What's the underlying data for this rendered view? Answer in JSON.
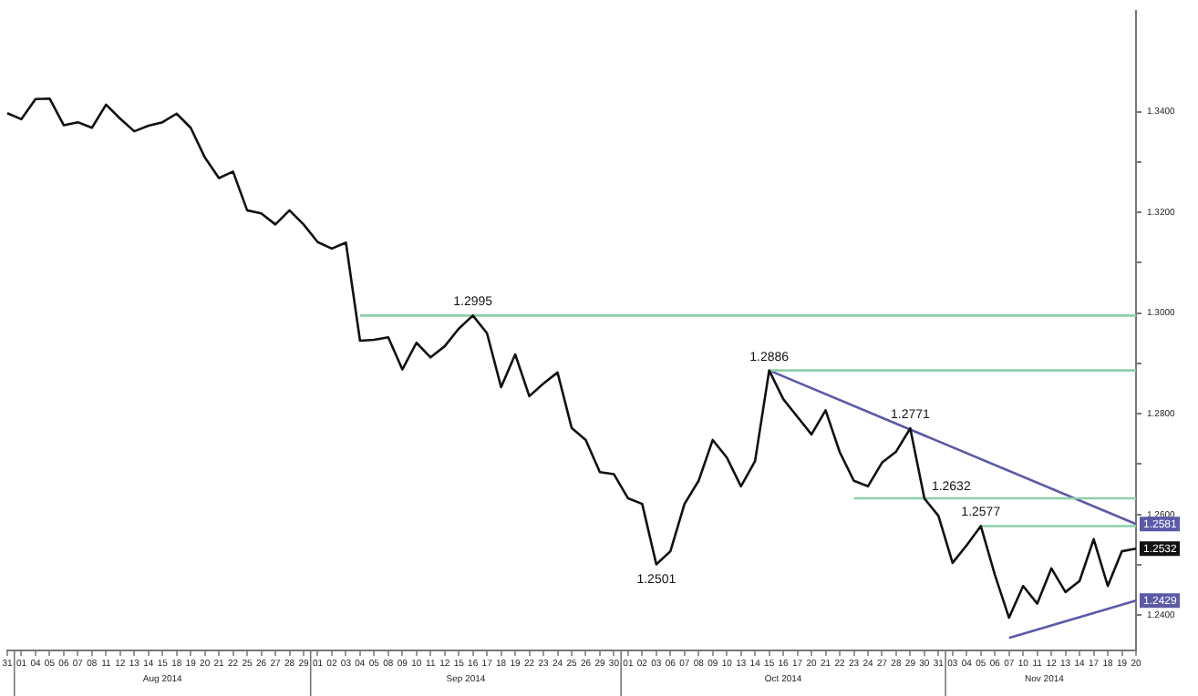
{
  "chart_data": {
    "type": "line",
    "categories": [
      "31",
      "01",
      "04",
      "05",
      "06",
      "07",
      "08",
      "11",
      "12",
      "13",
      "14",
      "15",
      "18",
      "19",
      "20",
      "21",
      "22",
      "25",
      "26",
      "27",
      "28",
      "29",
      "01",
      "02",
      "03",
      "04",
      "05",
      "08",
      "09",
      "10",
      "11",
      "12",
      "15",
      "16",
      "17",
      "18",
      "19",
      "22",
      "23",
      "24",
      "25",
      "26",
      "29",
      "30",
      "01",
      "02",
      "03",
      "06",
      "07",
      "08",
      "09",
      "10",
      "13",
      "14",
      "15",
      "16",
      "17",
      "20",
      "21",
      "22",
      "23",
      "24",
      "27",
      "28",
      "29",
      "30",
      "31",
      "03",
      "04",
      "05",
      "06",
      "07",
      "10",
      "11",
      "12",
      "13",
      "14",
      "17",
      "18",
      "19",
      "20"
    ],
    "series": [
      {
        "color": "#111111",
        "values": [
          1.3397,
          1.3385,
          1.3425,
          1.3426,
          1.3373,
          1.3379,
          1.3368,
          1.3414,
          1.3386,
          1.3361,
          1.3372,
          1.3379,
          1.3396,
          1.3368,
          1.3309,
          1.3268,
          1.3281,
          1.3204,
          1.3198,
          1.3176,
          1.3204,
          1.3176,
          1.3141,
          1.3128,
          1.314,
          1.2945,
          1.2947,
          1.2952,
          1.2888,
          1.2941,
          1.2912,
          1.2934,
          1.2969,
          1.2995,
          1.296,
          1.2853,
          1.2918,
          1.2835,
          1.286,
          1.2882,
          1.2772,
          1.2748,
          1.2684,
          1.268,
          1.2632,
          1.2621,
          1.2501,
          1.2527,
          1.2621,
          1.2667,
          1.2748,
          1.2713,
          1.2656,
          1.2706,
          1.2886,
          1.2829,
          1.2794,
          1.2759,
          1.2807,
          1.2724,
          1.2667,
          1.2656,
          1.2703,
          1.2725,
          1.2771,
          1.2632,
          1.2597,
          1.2504,
          1.2539,
          1.2577,
          1.248,
          1.2395,
          1.2458,
          1.2423,
          1.2493,
          1.2446,
          1.2468,
          1.2551,
          1.2458,
          1.2527,
          1.2532
        ],
        "value_labels": [
          null,
          null,
          null,
          null,
          null,
          null,
          null,
          null,
          null,
          null,
          null,
          null,
          null,
          null,
          null,
          null,
          null,
          null,
          null,
          null,
          null,
          null,
          null,
          null,
          null,
          null,
          null,
          null,
          null,
          null,
          null,
          null,
          null,
          "1.2995",
          null,
          null,
          null,
          null,
          null,
          null,
          null,
          null,
          null,
          null,
          null,
          null,
          "1.2501",
          null,
          null,
          null,
          null,
          null,
          null,
          null,
          "1.2886",
          null,
          null,
          null,
          null,
          null,
          null,
          null,
          null,
          null,
          "1.2771",
          "1.2632",
          null,
          null,
          null,
          "1.2577",
          null,
          null,
          null,
          null,
          null,
          null,
          null,
          null,
          null,
          null,
          null
        ]
      },
      {
        "color": "#8ccfa8",
        "values": [
          null,
          null,
          null,
          null,
          null,
          null,
          null,
          null,
          null,
          null,
          null,
          null,
          null,
          null,
          null,
          null,
          null,
          null,
          null,
          null,
          null,
          null,
          null,
          null,
          null,
          1.2995,
          1.2995,
          1.2995,
          1.2995,
          1.2995,
          1.2995,
          1.2995,
          1.2995,
          1.2995,
          1.2995,
          1.2995,
          1.2995,
          1.2995,
          1.2995,
          1.2995,
          1.2995,
          1.2995,
          1.2995,
          1.2995,
          1.2995,
          1.2995,
          1.2995,
          1.2995,
          1.2995,
          1.2995,
          1.2995,
          1.2995,
          1.2995,
          1.2995,
          1.2995,
          1.2995,
          1.2995,
          1.2995,
          1.2995,
          1.2995,
          1.2995,
          1.2995,
          1.2995,
          1.2995,
          1.2995,
          1.2995,
          1.2995,
          1.2995,
          1.2995,
          1.2995,
          1.2995,
          1.2995,
          1.2995,
          1.2995,
          1.2995,
          1.2995,
          1.2995,
          1.2995,
          1.2995,
          1.2995,
          1.2995
        ]
      },
      {
        "color": "#8ccfa8",
        "values": [
          null,
          null,
          null,
          null,
          null,
          null,
          null,
          null,
          null,
          null,
          null,
          null,
          null,
          null,
          null,
          null,
          null,
          null,
          null,
          null,
          null,
          null,
          null,
          null,
          null,
          null,
          null,
          null,
          null,
          null,
          null,
          null,
          null,
          null,
          null,
          null,
          null,
          null,
          null,
          null,
          null,
          null,
          null,
          null,
          null,
          null,
          null,
          null,
          null,
          null,
          null,
          null,
          null,
          null,
          1.2886,
          1.2886,
          1.2886,
          1.2886,
          1.2886,
          1.2886,
          1.2886,
          1.2886,
          1.2886,
          1.2886,
          1.2886,
          1.2886,
          1.2886,
          1.2886,
          1.2886,
          1.2886,
          1.2886,
          1.2886,
          1.2886,
          1.2886,
          1.2886,
          1.2886,
          1.2886,
          1.2886,
          1.2886,
          1.2886,
          1.2886
        ]
      },
      {
        "color": "#8ccfa8",
        "values": [
          null,
          null,
          null,
          null,
          null,
          null,
          null,
          null,
          null,
          null,
          null,
          null,
          null,
          null,
          null,
          null,
          null,
          null,
          null,
          null,
          null,
          null,
          null,
          null,
          null,
          null,
          null,
          null,
          null,
          null,
          null,
          null,
          null,
          null,
          null,
          null,
          null,
          null,
          null,
          null,
          null,
          null,
          null,
          null,
          null,
          null,
          null,
          null,
          null,
          null,
          null,
          null,
          null,
          null,
          null,
          null,
          null,
          null,
          null,
          null,
          1.2632,
          1.2632,
          1.2632,
          1.2632,
          1.2632,
          1.2632,
          1.2632,
          1.2632,
          1.2632,
          1.2632,
          1.2632,
          1.2632,
          1.2632,
          1.2632,
          1.2632,
          1.2632,
          1.2632,
          1.2632,
          1.2632,
          1.2632,
          1.2632
        ]
      },
      {
        "color": "#8ccfa8",
        "values": [
          null,
          null,
          null,
          null,
          null,
          null,
          null,
          null,
          null,
          null,
          null,
          null,
          null,
          null,
          null,
          null,
          null,
          null,
          null,
          null,
          null,
          null,
          null,
          null,
          null,
          null,
          null,
          null,
          null,
          null,
          null,
          null,
          null,
          null,
          null,
          null,
          null,
          null,
          null,
          null,
          null,
          null,
          null,
          null,
          null,
          null,
          null,
          null,
          null,
          null,
          null,
          null,
          null,
          null,
          null,
          null,
          null,
          null,
          null,
          null,
          null,
          null,
          null,
          null,
          null,
          null,
          null,
          null,
          null,
          1.2577,
          1.2577,
          1.2577,
          1.2577,
          1.2577,
          1.2577,
          1.2577,
          1.2577,
          1.2577,
          1.2577,
          1.2577,
          1.2577
        ]
      },
      {
        "color": "#5a5aa8",
        "values": [
          null,
          null,
          null,
          null,
          null,
          null,
          null,
          null,
          null,
          null,
          null,
          null,
          null,
          null,
          null,
          null,
          null,
          null,
          null,
          null,
          null,
          null,
          null,
          null,
          null,
          null,
          null,
          null,
          null,
          null,
          null,
          null,
          null,
          null,
          null,
          null,
          null,
          null,
          null,
          null,
          null,
          null,
          null,
          null,
          null,
          null,
          null,
          null,
          null,
          null,
          null,
          null,
          null,
          null,
          1.2886,
          null,
          null,
          null,
          null,
          null,
          null,
          null,
          null,
          null,
          null,
          null,
          null,
          null,
          null,
          null,
          null,
          null,
          null,
          null,
          null,
          null,
          null,
          null,
          null,
          null,
          1.2581
        ]
      },
      {
        "color": "#5a5aa8",
        "values": [
          null,
          null,
          null,
          null,
          null,
          null,
          null,
          null,
          null,
          null,
          null,
          null,
          null,
          null,
          null,
          null,
          null,
          null,
          null,
          null,
          null,
          null,
          null,
          null,
          null,
          null,
          null,
          null,
          null,
          null,
          null,
          null,
          null,
          null,
          null,
          null,
          null,
          null,
          null,
          null,
          null,
          null,
          null,
          null,
          null,
          null,
          null,
          null,
          null,
          null,
          null,
          null,
          null,
          null,
          null,
          null,
          null,
          null,
          null,
          null,
          null,
          null,
          null,
          null,
          null,
          null,
          null,
          null,
          null,
          null,
          null,
          1.2355,
          null,
          null,
          null,
          null,
          null,
          null,
          null,
          null,
          1.2429
        ]
      }
    ],
    "ylim": [
      1.233,
      1.36
    ],
    "yticks": [
      {
        "value": 1.24,
        "label": "1.2400"
      },
      {
        "value": 1.25,
        "label": null
      },
      {
        "value": 1.26,
        "label": "1.2600"
      },
      {
        "value": 1.27,
        "label": null
      },
      {
        "value": 1.28,
        "label": "1.2800"
      },
      {
        "value": 1.29,
        "label": null
      },
      {
        "value": 1.3,
        "label": "1.3000"
      },
      {
        "value": 1.31,
        "label": null
      },
      {
        "value": 1.32,
        "label": "1.3200"
      },
      {
        "value": 1.33,
        "label": null
      },
      {
        "value": 1.34,
        "label": "1.3400"
      }
    ],
    "annotations": [
      "Aug 2014",
      "Sep 2014",
      "Oct 2014",
      "Nov 2014",
      {
        "text": "1.2581",
        "y": 1.2581
      },
      {
        "text": "1.2532",
        "y": 1.2532
      },
      {
        "text": "1.2429",
        "y": 1.2429
      }
    ],
    "grid": false,
    "legend": false
  }
}
